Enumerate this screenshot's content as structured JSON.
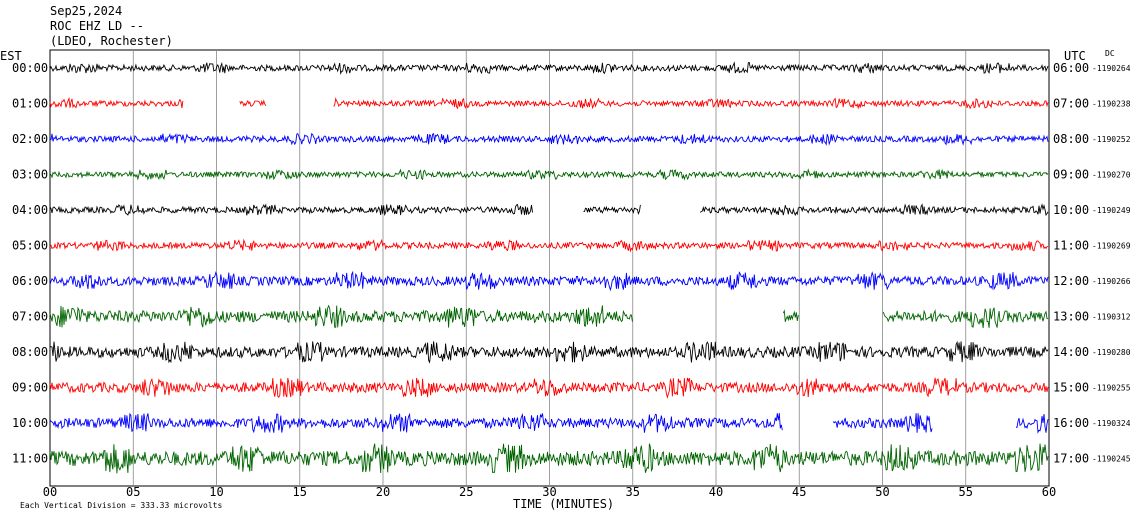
{
  "header": {
    "date": "Sep25,2024",
    "station": "ROC EHZ LD --",
    "network": "(LDEO, Rochester)"
  },
  "left_axis_label": "EST",
  "right_axis_label": "UTC",
  "dc_label": "DC",
  "footer": {
    "scale_note": "Each Vertical Division = 333.33 microvolts",
    "xlabel": "TIME (MINUTES)"
  },
  "chart_data": {
    "type": "line",
    "title": "",
    "xlabel": "TIME (MINUTES)",
    "ylabel": "",
    "xlim": [
      0,
      60
    ],
    "x_ticks": [
      "00",
      "05",
      "10",
      "15",
      "20",
      "25",
      "30",
      "35",
      "40",
      "45",
      "50",
      "55",
      "60"
    ],
    "grid": true,
    "colors": [
      "#000000",
      "#ff0000",
      "#0000ff",
      "#006400"
    ],
    "series": [
      {
        "est": "00:00",
        "utc": "06:00",
        "dc": "-1190264",
        "color": "#000000",
        "activity": 0.25,
        "gaps": []
      },
      {
        "est": "01:00",
        "utc": "07:00",
        "dc": "-1190238",
        "color": "#ff0000",
        "activity": 0.22,
        "gaps": [
          [
            8,
            11.4
          ],
          [
            13,
            17
          ]
        ]
      },
      {
        "est": "02:00",
        "utc": "08:00",
        "dc": "-1190252",
        "color": "#0000ff",
        "activity": 0.25,
        "gaps": []
      },
      {
        "est": "03:00",
        "utc": "09:00",
        "dc": "-1190270",
        "color": "#006400",
        "activity": 0.22,
        "gaps": []
      },
      {
        "est": "04:00",
        "utc": "10:00",
        "dc": "-1190249",
        "color": "#000000",
        "activity": 0.25,
        "gaps": [
          [
            29,
            32
          ],
          [
            35.5,
            39
          ]
        ]
      },
      {
        "est": "05:00",
        "utc": "11:00",
        "dc": "-1190269",
        "color": "#ff0000",
        "activity": 0.25,
        "gaps": []
      },
      {
        "est": "06:00",
        "utc": "12:00",
        "dc": "-1190266",
        "color": "#0000ff",
        "activity": 0.45,
        "gaps": []
      },
      {
        "est": "07:00",
        "utc": "13:00",
        "dc": "-1190312",
        "color": "#006400",
        "activity": 0.6,
        "gaps": [
          [
            35,
            44
          ],
          [
            45,
            50
          ]
        ]
      },
      {
        "est": "08:00",
        "utc": "14:00",
        "dc": "-1190280",
        "color": "#000000",
        "activity": 0.55,
        "gaps": []
      },
      {
        "est": "09:00",
        "utc": "15:00",
        "dc": "-1190255",
        "color": "#ff0000",
        "activity": 0.5,
        "gaps": []
      },
      {
        "est": "10:00",
        "utc": "16:00",
        "dc": "-1190324",
        "color": "#0000ff",
        "activity": 0.5,
        "gaps": [
          [
            44,
            47
          ],
          [
            53,
            58
          ]
        ]
      },
      {
        "est": "11:00",
        "utc": "17:00",
        "dc": "-1190245",
        "color": "#006400",
        "activity": 0.8,
        "gaps": []
      }
    ]
  }
}
